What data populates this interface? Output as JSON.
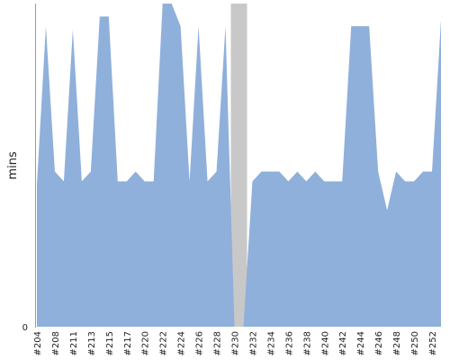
{
  "chart_data": {
    "type": "area",
    "title": "",
    "xlabel": "",
    "ylabel": "mins",
    "y_tick_labels": [
      "0"
    ],
    "ylim": [
      0,
      100
    ],
    "grid": false,
    "legend": "none",
    "colors": {
      "fill": "#8fb0da",
      "gap": "#c8c8c8",
      "axis": "#9a9a9a",
      "text": "#222222"
    },
    "x_tick_labels": [
      "#204",
      "#208",
      "#211",
      "#213",
      "#215",
      "#217",
      "#220",
      "#222",
      "#224",
      "#226",
      "#228",
      "#230",
      "#232",
      "#234",
      "#236",
      "#238",
      "#240",
      "#242",
      "#244",
      "#246",
      "#248",
      "#250",
      "#252"
    ],
    "x": [
      "#204",
      "#205",
      "#208",
      "#209",
      "#211",
      "#212",
      "#213",
      "#214",
      "#215",
      "#216",
      "#217",
      "#219",
      "#220",
      "#221",
      "#222",
      "#223",
      "#224",
      "#225",
      "#226",
      "#227",
      "#228",
      "#229",
      "#230",
      "#231",
      "#232",
      "#233",
      "#234",
      "#235",
      "#236",
      "#237",
      "#238",
      "#239",
      "#240",
      "#241",
      "#242",
      "#243",
      "#244",
      "#245",
      "#246",
      "#247",
      "#248",
      "#249",
      "#250",
      "#251",
      "#252",
      "#253"
    ],
    "series": [
      {
        "values": [
          44,
          93,
          48,
          45,
          92,
          45,
          48,
          96,
          96,
          45,
          45,
          48,
          45,
          45,
          101,
          101,
          93,
          45,
          93,
          45,
          48,
          93,
          0,
          0,
          45,
          48,
          48,
          48,
          45,
          48,
          45,
          48,
          45,
          45,
          45,
          93,
          93,
          93,
          48,
          36,
          48,
          45,
          45,
          48,
          48,
          95
        ]
      }
    ]
  }
}
